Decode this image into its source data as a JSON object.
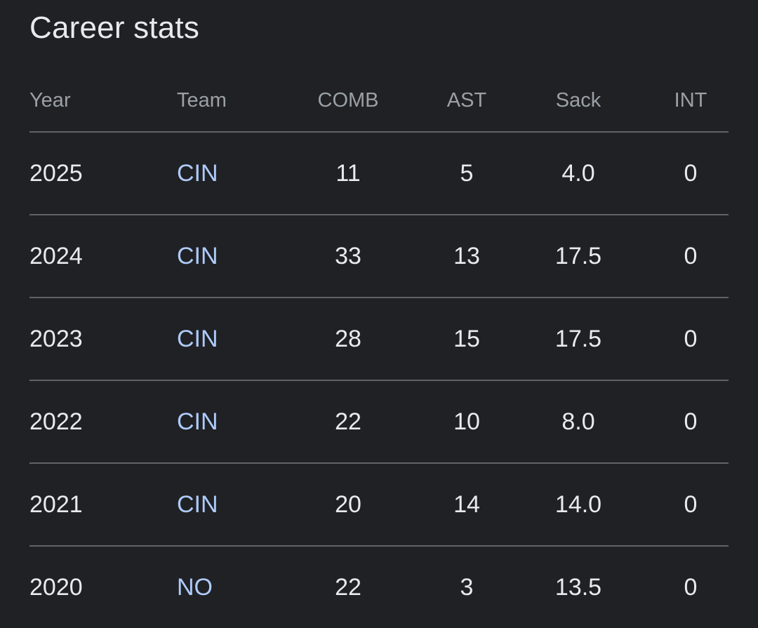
{
  "title": "Career stats",
  "colors": {
    "background": "#202124",
    "text": "#e8eaed",
    "header_text": "#9aa0a6",
    "link": "#aecbfa",
    "divider": "#5f6368"
  },
  "table": {
    "headers": [
      "Year",
      "Team",
      "COMB",
      "AST",
      "Sack",
      "INT"
    ],
    "rows": [
      {
        "year": "2025",
        "team": "CIN",
        "comb": "11",
        "ast": "5",
        "sack": "4.0",
        "int": "0"
      },
      {
        "year": "2024",
        "team": "CIN",
        "comb": "33",
        "ast": "13",
        "sack": "17.5",
        "int": "0"
      },
      {
        "year": "2023",
        "team": "CIN",
        "comb": "28",
        "ast": "15",
        "sack": "17.5",
        "int": "0"
      },
      {
        "year": "2022",
        "team": "CIN",
        "comb": "22",
        "ast": "10",
        "sack": "8.0",
        "int": "0"
      },
      {
        "year": "2021",
        "team": "CIN",
        "comb": "20",
        "ast": "14",
        "sack": "14.0",
        "int": "0"
      },
      {
        "year": "2020",
        "team": "NO",
        "comb": "22",
        "ast": "3",
        "sack": "13.5",
        "int": "0"
      }
    ]
  }
}
